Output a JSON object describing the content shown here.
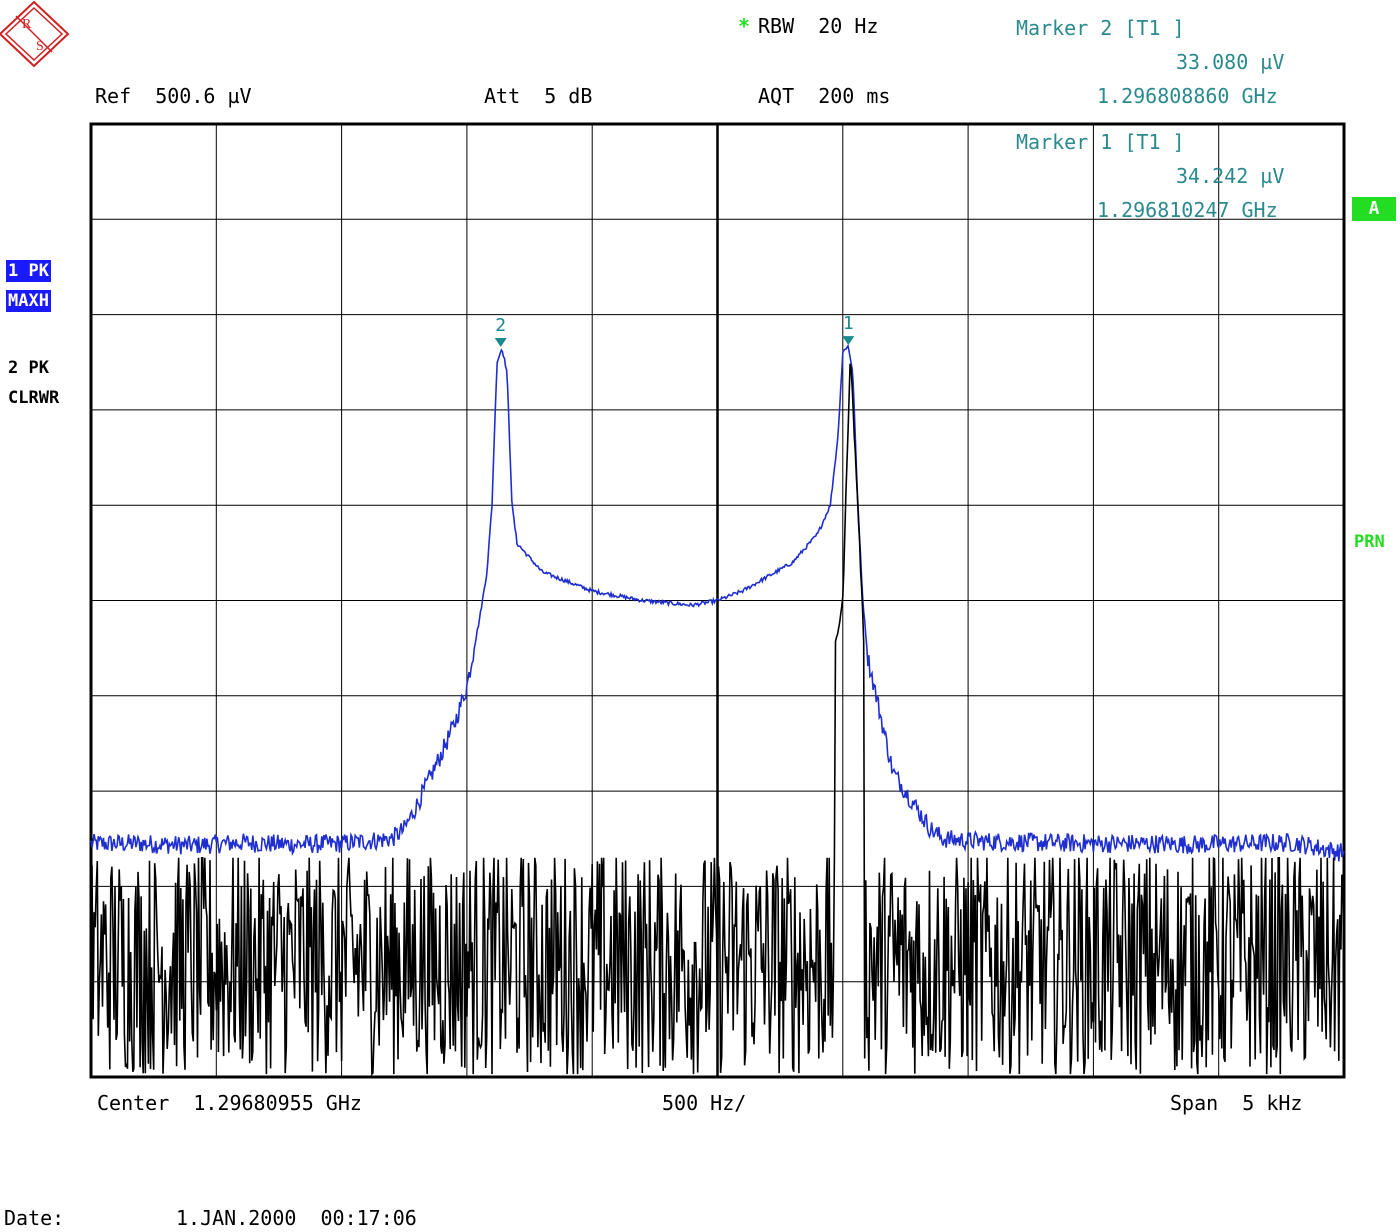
{
  "header": {
    "rbw_star": "*",
    "rbw": "RBW  20 Hz",
    "ref": "Ref  500.6 µV",
    "att": "Att  5 dB",
    "aqt": "AQT  200 ms"
  },
  "markers": [
    {
      "title": "Marker 2 [T1 ]",
      "level": "33.080 µV",
      "freq": "1.296808860 GHz",
      "label": "2",
      "x_hz": -865,
      "y_frac": 0.766
    },
    {
      "title": "Marker 1 [T1 ]",
      "level": "34.242 µV",
      "freq": "1.296810247 GHz",
      "label": "1",
      "x_hz": 522,
      "y_frac": 0.768
    }
  ],
  "traces": [
    {
      "badge1": "1 PK",
      "badge2": "MAXH"
    },
    {
      "label1": "2 PK",
      "label2": "CLRWR"
    }
  ],
  "side_labels": {
    "a": "A",
    "prn": "PRN"
  },
  "footer": {
    "center": "Center  1.29680955 GHz",
    "div": "500 Hz/",
    "span": "Span  5 kHz",
    "date_label": "Date:",
    "date_value": "1.JAN.2000  00:17:06"
  },
  "colors": {
    "trace1": "#1f2fcf",
    "trace2": "#000000",
    "marker": "#1a8a8e",
    "grid": "#000000"
  },
  "chart_data": {
    "type": "line",
    "x_unit": "Hz offset from center",
    "xlim": [
      -2500,
      2500
    ],
    "ylim": [
      0,
      1
    ],
    "grid": true,
    "series": [
      {
        "name": "1 PK MAXH",
        "x": [
          -2500,
          -2300,
          -2100,
          -1900,
          -1700,
          -1500,
          -1300,
          -1250,
          -1200,
          -1100,
          -1050,
          -1000,
          -950,
          -920,
          -900,
          -880,
          -860,
          -840,
          -820,
          -800,
          -700,
          -500,
          -300,
          -100,
          0,
          100,
          300,
          400,
          450,
          480,
          500,
          520,
          540,
          560,
          580,
          600,
          650,
          700,
          800,
          850,
          900,
          1000,
          1100,
          1300,
          1500,
          1700,
          1900,
          2100,
          2300,
          2500
        ],
        "y": [
          0.245,
          0.245,
          0.243,
          0.246,
          0.244,
          0.245,
          0.25,
          0.26,
          0.285,
          0.34,
          0.37,
          0.41,
          0.48,
          0.53,
          0.6,
          0.75,
          0.765,
          0.74,
          0.6,
          0.56,
          0.53,
          0.51,
          0.5,
          0.495,
          0.5,
          0.51,
          0.54,
          0.57,
          0.6,
          0.67,
          0.76,
          0.768,
          0.74,
          0.6,
          0.5,
          0.44,
          0.38,
          0.32,
          0.28,
          0.26,
          0.25,
          0.248,
          0.247,
          0.246,
          0.245,
          0.245,
          0.244,
          0.245,
          0.246,
          0.235
        ]
      },
      {
        "name": "2 PK CLRWR",
        "x": [
          -2500,
          -2300,
          -2100,
          -1900,
          -1700,
          -1500,
          -1300,
          -1100,
          -900,
          -700,
          -500,
          -300,
          -100,
          0,
          100,
          300,
          400,
          450,
          500,
          530,
          560,
          600,
          650,
          700,
          750,
          900,
          1100,
          1300,
          1500,
          1700,
          1900,
          2100,
          2300,
          2500
        ],
        "y": [
          0.12,
          0.13,
          0.12,
          0.14,
          0.13,
          0.12,
          0.13,
          0.12,
          0.13,
          0.12,
          0.13,
          0.12,
          0.13,
          0.12,
          0.13,
          0.14,
          0.3,
          0.42,
          0.5,
          0.76,
          0.6,
          0.36,
          0.26,
          0.2,
          0.15,
          0.13,
          0.12,
          0.13,
          0.12,
          0.13,
          0.12,
          0.13,
          0.12,
          0.17
        ]
      }
    ]
  }
}
